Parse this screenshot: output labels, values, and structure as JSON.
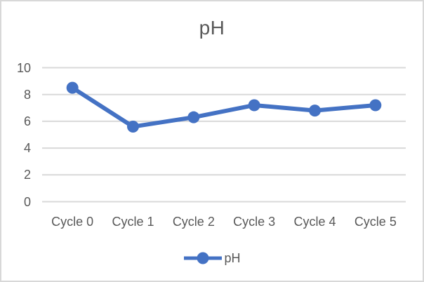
{
  "chart_data": {
    "type": "line",
    "title": "pH",
    "categories": [
      "Cycle 0",
      "Cycle 1",
      "Cycle 2",
      "Cycle 3",
      "Cycle 4",
      "Cycle 5"
    ],
    "series": [
      {
        "name": "pH",
        "values": [
          8.5,
          5.6,
          6.3,
          7.2,
          6.8,
          7.2
        ]
      }
    ],
    "xlabel": "",
    "ylabel": "",
    "ylim": [
      0,
      10
    ],
    "yticks": [
      10,
      8,
      6,
      4,
      2,
      0
    ],
    "grid": true,
    "legend_position": "bottom",
    "line_color": "#4472C4",
    "gridline_color": "#D9D9D9",
    "text_color": "#595959",
    "marker": "circle"
  }
}
